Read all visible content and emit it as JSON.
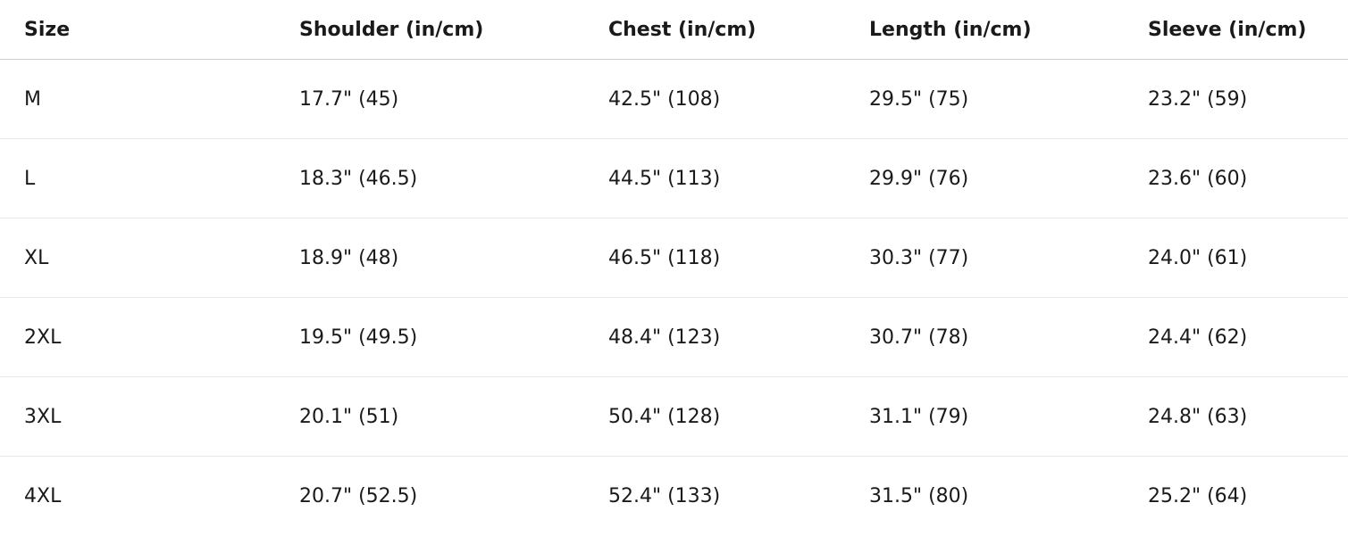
{
  "table": {
    "headers": [
      "Size",
      "Shoulder (in/cm)",
      "Chest (in/cm)",
      "Length (in/cm)",
      "Sleeve (in/cm)"
    ],
    "rows": [
      [
        "M",
        "17.7\" (45)",
        "42.5\" (108)",
        "29.5\" (75)",
        "23.2\" (59)"
      ],
      [
        "L",
        "18.3\" (46.5)",
        "44.5\" (113)",
        "29.9\" (76)",
        "23.6\" (60)"
      ],
      [
        "XL",
        "18.9\" (48)",
        "46.5\" (118)",
        "30.3\" (77)",
        "24.0\" (61)"
      ],
      [
        "2XL",
        "19.5\" (49.5)",
        "48.4\" (123)",
        "30.7\" (78)",
        "24.4\" (62)"
      ],
      [
        "3XL",
        "20.1\" (51)",
        "50.4\" (128)",
        "31.1\" (79)",
        "24.8\" (63)"
      ],
      [
        "4XL",
        "20.7\" (52.5)",
        "52.4\" (133)",
        "31.5\" (80)",
        "25.2\" (64)"
      ]
    ]
  }
}
